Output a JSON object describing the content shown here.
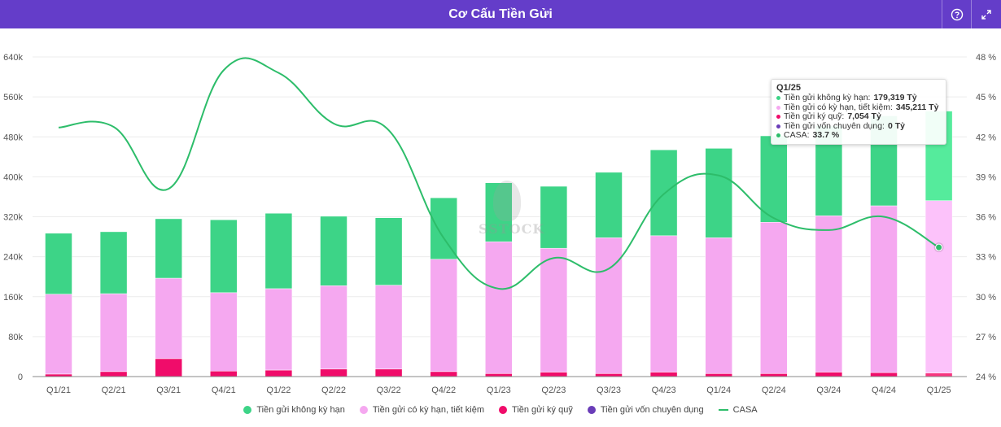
{
  "header": {
    "title": "Cơ Cấu Tiền Gửi",
    "help_icon": "question-circle-icon",
    "expand_icon": "expand-arrows-icon"
  },
  "watermark": "SSTOCK",
  "chart_data": {
    "type": "bar",
    "stacked": true,
    "title": "Cơ Cấu Tiền Gửi",
    "categories": [
      "Q1/21",
      "Q2/21",
      "Q3/21",
      "Q4/21",
      "Q1/22",
      "Q2/22",
      "Q3/22",
      "Q4/22",
      "Q1/23",
      "Q2/23",
      "Q3/23",
      "Q4/23",
      "Q1/24",
      "Q2/24",
      "Q3/24",
      "Q4/24",
      "Q1/25"
    ],
    "series": [
      {
        "name": "Tiền gửi ký quỹ",
        "type": "bar",
        "axis": "left",
        "color": "#f00c6a",
        "values": [
          5000,
          10000,
          36000,
          11000,
          13000,
          15000,
          15000,
          10000,
          6000,
          9000,
          6000,
          9000,
          6000,
          6000,
          9000,
          8000,
          7054
        ]
      },
      {
        "name": "Tiền gửi có kỳ hạn, tiết kiệm",
        "type": "bar",
        "axis": "left",
        "color": "#f5a8f0",
        "values": [
          160000,
          156000,
          161000,
          157000,
          163000,
          167000,
          168000,
          225000,
          264000,
          248000,
          272000,
          273000,
          272000,
          303000,
          313000,
          334000,
          345211
        ]
      },
      {
        "name": "Tiền gửi không kỳ hạn",
        "type": "bar",
        "axis": "left",
        "color": "#3dd487",
        "values": [
          122000,
          124000,
          119000,
          146000,
          151000,
          139000,
          135000,
          123000,
          118000,
          124000,
          131000,
          172000,
          179000,
          173000,
          180000,
          180000,
          179319
        ]
      },
      {
        "name": "Tiền gửi vốn chuyên dụng",
        "type": "bar",
        "axis": "left",
        "color": "#6a3db8",
        "values": [
          0,
          0,
          0,
          0,
          0,
          0,
          0,
          0,
          0,
          0,
          0,
          0,
          0,
          0,
          0,
          0,
          0
        ]
      },
      {
        "name": "CASA",
        "type": "line",
        "axis": "right",
        "color": "#2dbd6a",
        "unit": "%",
        "values": [
          42.7,
          42.75,
          38.1,
          47.0,
          46.8,
          43.0,
          42.5,
          34.4,
          30.6,
          32.9,
          32.1,
          37.7,
          39.1,
          35.9,
          35.0,
          36.0,
          33.7
        ]
      }
    ],
    "y_left": {
      "min": 0,
      "max": 640000,
      "ticks": [
        "0",
        "80k",
        "160k",
        "240k",
        "320k",
        "400k",
        "480k",
        "560k",
        "640k"
      ]
    },
    "y_right": {
      "min": 24,
      "max": 48,
      "ticks": [
        "24 %",
        "27 %",
        "30 %",
        "33 %",
        "36 %",
        "39 %",
        "42 %",
        "45 %",
        "48 %"
      ]
    },
    "grid": true,
    "legend_position": "bottom",
    "legend": [
      {
        "label": "Tiền gửi không kỳ hạn",
        "color": "#3dd487",
        "shape": "dot"
      },
      {
        "label": "Tiền gửi có kỳ hạn, tiết kiệm",
        "color": "#f5a8f0",
        "shape": "dot"
      },
      {
        "label": "Tiền gửi ký quỹ",
        "color": "#f00c6a",
        "shape": "dot"
      },
      {
        "label": "Tiền gửi vốn chuyên dụng",
        "color": "#6a3db8",
        "shape": "dot"
      },
      {
        "label": "CASA",
        "color": "#2dbd6a",
        "shape": "line"
      }
    ],
    "highlighted_category": "Q1/25"
  },
  "tooltip": {
    "title": "Q1/25",
    "rows": [
      {
        "label": "Tiền gửi không kỳ hạn:",
        "value": "179,319 Tỷ",
        "color": "#3dd487"
      },
      {
        "label": "Tiền gửi có kỳ hạn, tiết kiệm:",
        "value": "345,211 Tỷ",
        "color": "#f5a8f0"
      },
      {
        "label": "Tiền gửi ký quỹ:",
        "value": "7,054 Tỷ",
        "color": "#f00c6a"
      },
      {
        "label": "Tiền gửi vốn chuyên dụng:",
        "value": "0 Tỷ",
        "color": "#6a3db8"
      },
      {
        "label": "CASA:",
        "value": "33.7 %",
        "color": "#2dbd6a"
      }
    ]
  }
}
